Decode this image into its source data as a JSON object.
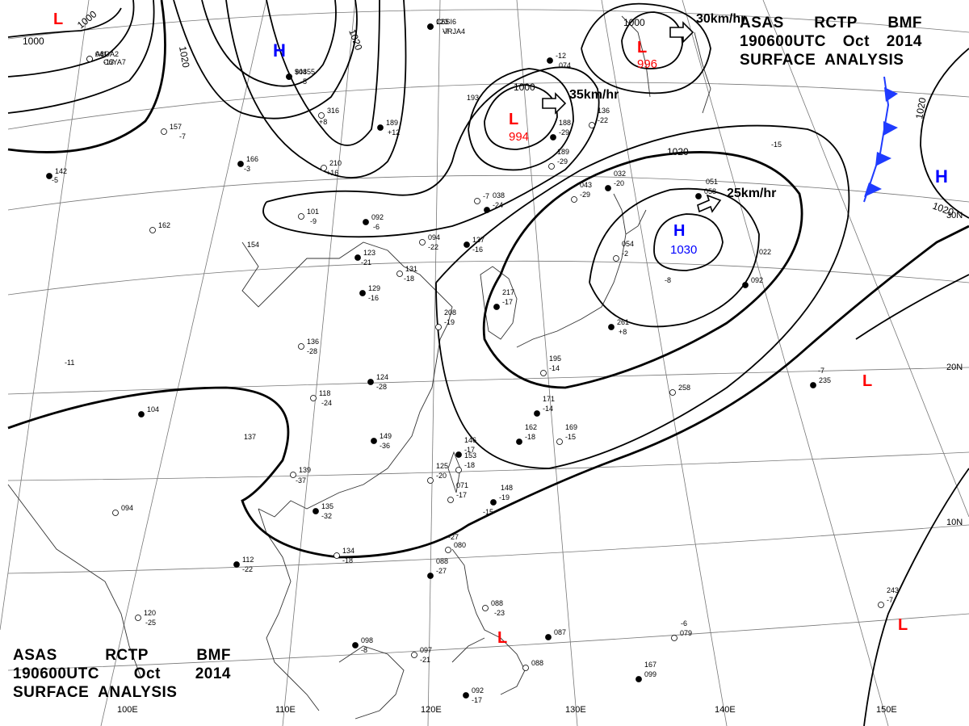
{
  "header": {
    "line1": [
      "ASAS",
      "RCTP",
      "BMF"
    ],
    "line2": [
      "190600UTC",
      "Oct",
      "2014"
    ],
    "line3": "SURFACE  ANALYSIS"
  },
  "colors": {
    "low": "#ff0000",
    "high": "#0000ff",
    "front": "#1f3bff",
    "isobar": "#000000"
  },
  "pressure_systems": [
    {
      "type": "L",
      "label": "L",
      "value": "994"
    },
    {
      "type": "L",
      "label": "L",
      "value": "996"
    },
    {
      "type": "H",
      "label": "H",
      "value": "1030"
    },
    {
      "type": "H",
      "label": "H",
      "value": ""
    },
    {
      "type": "H",
      "label": "H",
      "value": ""
    },
    {
      "type": "L",
      "label": "L",
      "value": ""
    },
    {
      "type": "L",
      "label": "L",
      "value": ""
    },
    {
      "type": "L",
      "label": "L",
      "value": ""
    },
    {
      "type": "L",
      "label": "L",
      "value": ""
    }
  ],
  "motion": [
    "35km/hr",
    "30km/hr",
    "25km/hr"
  ],
  "isobar_labels": [
    "1000",
    "1000",
    "1020",
    "1020",
    "1000",
    "1000",
    "1020",
    "1020",
    "1020",
    "1030"
  ],
  "longitudes": [
    "100E",
    "110E",
    "120E",
    "130E",
    "140E",
    "150E"
  ],
  "latitudes": [
    "30N",
    "20N",
    "10N"
  ],
  "stations": [
    "123",
    "-7",
    "041",
    "-13",
    "908",
    "-5",
    "316",
    "+8",
    "189",
    "+12",
    "210",
    "+16",
    "166",
    "-3",
    "157",
    "-7",
    "142",
    "-5",
    "101",
    "-9",
    "092",
    "-6",
    "162",
    "154",
    "123",
    "-21",
    "094",
    "-22",
    "137",
    "-16",
    "131",
    "-18",
    "129",
    "-16",
    "136",
    "-28",
    "124",
    "-28",
    "118",
    "-24",
    "149",
    "-36",
    "139",
    "-37",
    "135",
    "-32",
    "134",
    "-18",
    "112",
    "-22",
    "094",
    "-11",
    "104",
    "137",
    "120",
    "-25",
    "098",
    "-8",
    "097",
    "-21",
    "092",
    "-17",
    "088",
    "-23",
    "087",
    "-27",
    "080",
    "088",
    "-27",
    "071",
    "-17",
    "148",
    "-19",
    "125",
    "-20",
    "146",
    "-17",
    "153",
    "-18",
    "162",
    "-18",
    "169",
    "-15",
    "171",
    "-14",
    "195",
    "-14",
    "217",
    "-17",
    "208",
    "-19",
    "188",
    "-29",
    "189",
    "-29",
    "038",
    "-24",
    "043",
    "-29",
    "032",
    "-20",
    "136",
    "-22",
    "193",
    "-12",
    "074",
    "-7",
    "051",
    "058",
    "054",
    "-2",
    "022",
    "261",
    "+8",
    "258",
    "-7",
    "235",
    "243",
    "-7",
    "167",
    "099",
    "-6",
    "079",
    "-8",
    "092",
    "-15",
    "088",
    "-15",
    "C6SI6",
    "VRJA4",
    "A8OA2",
    "C6YA7",
    "$4455"
  ]
}
